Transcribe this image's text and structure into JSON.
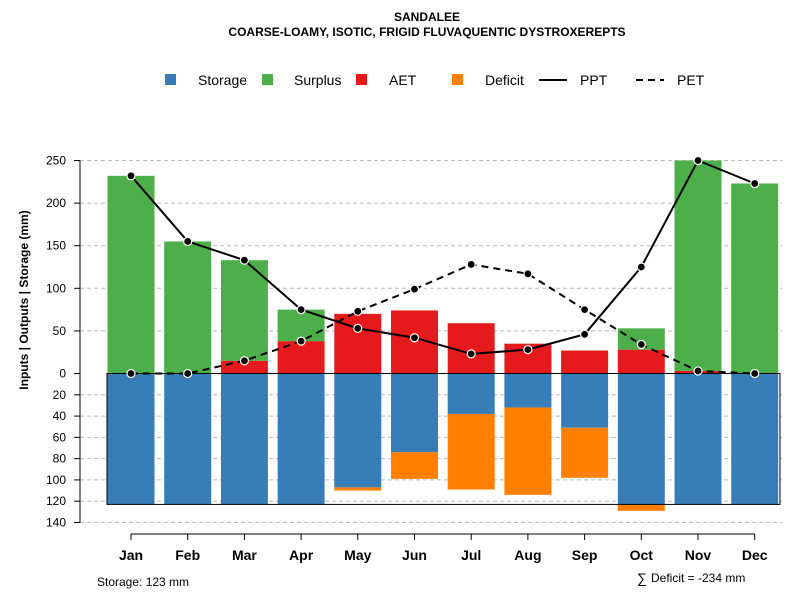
{
  "chart_data": {
    "type": "bar",
    "title": "SANDALEE",
    "subtitle": "COARSE-LOAMY, ISOTIC, FRIGID FLUVAQUENTIC DYSTROXEREPTS",
    "ylabel": "Inputs | Outputs | Storage    (mm)",
    "ylim_upper": [
      0,
      250
    ],
    "ylim_lower": [
      0,
      140
    ],
    "upper_ticks": [
      "0",
      "50",
      "100",
      "150",
      "200",
      "250"
    ],
    "lower_ticks": [
      "20",
      "40",
      "60",
      "80",
      "100",
      "120",
      "140"
    ],
    "categories": [
      "Jan",
      "Feb",
      "Mar",
      "Apr",
      "May",
      "Jun",
      "Jul",
      "Aug",
      "Sep",
      "Oct",
      "Nov",
      "Dec"
    ],
    "series": [
      {
        "name": "Storage",
        "color": "#377EB8",
        "values": [
          123,
          123,
          123,
          123,
          107,
          74,
          38,
          32,
          51,
          123,
          123,
          123
        ]
      },
      {
        "name": "Surplus",
        "color": "#4DAF4A",
        "values": [
          232,
          155,
          118,
          37,
          0,
          0,
          0,
          0,
          0,
          25,
          247,
          223
        ]
      },
      {
        "name": "AET",
        "color": "#E41A1C",
        "values": [
          0,
          0,
          15,
          38,
          70,
          74,
          59,
          35,
          27,
          28,
          3,
          0
        ]
      },
      {
        "name": "Deficit",
        "color": "#FF7F00",
        "values": [
          0,
          0,
          0,
          0,
          3,
          25,
          71,
          82,
          47,
          6,
          0,
          0
        ]
      },
      {
        "name": "PPT",
        "values": [
          232,
          155,
          133,
          75,
          53,
          42,
          23,
          28,
          46,
          125,
          250,
          223
        ]
      },
      {
        "name": "PET",
        "values": [
          0,
          0,
          15,
          38,
          73,
          99,
          128,
          117,
          75,
          34,
          3,
          0
        ]
      }
    ],
    "legend": [
      "Storage",
      "Surplus",
      "AET",
      "Deficit",
      "PPT",
      "PET"
    ],
    "legend_position": "top",
    "storage_capacity": 123,
    "storage_note": "Storage: 123 mm",
    "deficit_symbol": "∑",
    "deficit_note": "Deficit = -234 mm"
  }
}
